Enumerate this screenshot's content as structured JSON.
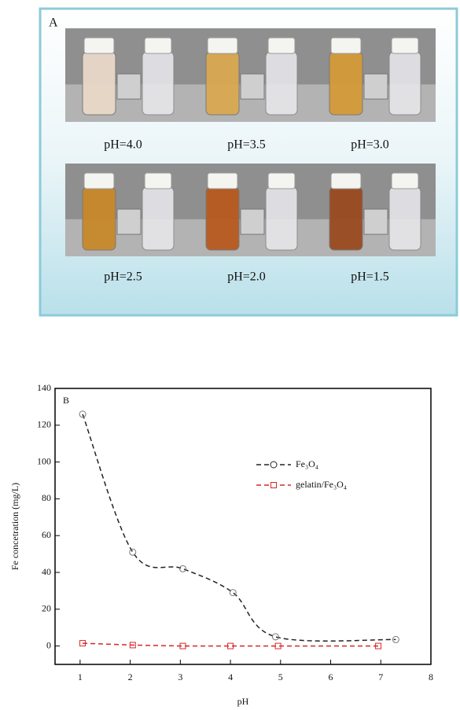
{
  "panel_a": {
    "label": "A",
    "captions": [
      "pH=4.0",
      "pH=3.5",
      "pH=3.0",
      "pH=2.5",
      "pH=2.0",
      "pH=1.5"
    ]
  },
  "chart_data": {
    "type": "scatter",
    "panel_label": "B",
    "x_label": "pH",
    "y_label": "Fe concetration (mg/L)",
    "xlim": [
      0.5,
      8
    ],
    "xticks": [
      1,
      2,
      3,
      4,
      5,
      6,
      7,
      8
    ],
    "ylim": [
      -10,
      140
    ],
    "yticks": [
      0,
      20,
      40,
      60,
      80,
      100,
      120,
      140
    ],
    "series": [
      {
        "name": "Fe₃O₄",
        "color": "#222222",
        "marker": "circle",
        "x": [
          1.05,
          2.05,
          3.05,
          4.05,
          4.9,
          7.3
        ],
        "values": [
          126,
          51,
          42,
          29,
          5,
          3.5
        ]
      },
      {
        "name": "gelatin/Fe₃O₄",
        "color": "#d62728",
        "marker": "square",
        "x": [
          1.05,
          2.05,
          3.05,
          4.0,
          4.95,
          6.95
        ],
        "values": [
          1.5,
          0.5,
          0,
          0,
          0,
          0
        ]
      }
    ]
  }
}
